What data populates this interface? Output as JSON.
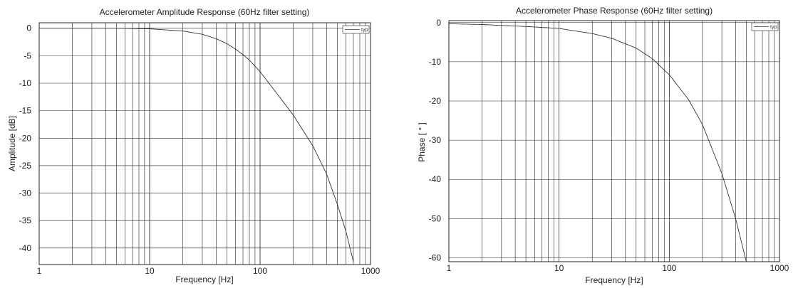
{
  "chart_data": [
    {
      "type": "line",
      "title": "Accelerometer Amplitude Response (60Hz filter setting)",
      "xlabel": "Frequency [Hz]",
      "ylabel": "Amplitude [dB]",
      "x_scale": "log",
      "xlim": [
        1,
        1000
      ],
      "ylim": [
        -43,
        1
      ],
      "grid": true,
      "legend_position": "top-right",
      "x_ticks": [
        "1",
        "10",
        "100",
        "1000"
      ],
      "y_ticks": [
        "0",
        "-5",
        "-10",
        "-15",
        "-20",
        "-25",
        "-30",
        "-35",
        "-40"
      ],
      "series": [
        {
          "name": "typ",
          "x": [
            1,
            5,
            10,
            20,
            30,
            40,
            50,
            60,
            70,
            80,
            100,
            150,
            200,
            300,
            400,
            500,
            600,
            700
          ],
          "y": [
            0,
            0,
            -0.1,
            -0.5,
            -1.1,
            -1.9,
            -2.8,
            -3.8,
            -4.8,
            -5.8,
            -7.9,
            -12.5,
            -15.8,
            -21.4,
            -26.5,
            -32,
            -37,
            -42.5
          ]
        }
      ]
    },
    {
      "type": "line",
      "title": "Accelerometer Phase Response (60Hz filter setting)",
      "xlabel": "Frequency [Hz]",
      "ylabel": "Phase [ ° ]",
      "x_scale": "log",
      "xlim": [
        1,
        1000
      ],
      "ylim": [
        -61,
        0.5
      ],
      "grid": true,
      "legend_position": "top-right",
      "x_ticks": [
        "1",
        "10",
        "100",
        "1000"
      ],
      "y_ticks": [
        "0",
        "-10",
        "-20",
        "-30",
        "-40",
        "-50",
        "-60"
      ],
      "series": [
        {
          "name": "typ",
          "x": [
            1,
            2,
            5,
            10,
            20,
            30,
            50,
            70,
            100,
            150,
            200,
            300,
            400,
            500
          ],
          "y": [
            -0.3,
            -0.5,
            -1,
            -1.5,
            -2.8,
            -4,
            -6.5,
            -9.2,
            -13.3,
            -19.7,
            -26,
            -38.5,
            -50,
            -61
          ]
        }
      ]
    }
  ],
  "colors": {
    "background": "#ffffff",
    "grid": "#222222",
    "curve": "#333333",
    "text": "#222222"
  }
}
